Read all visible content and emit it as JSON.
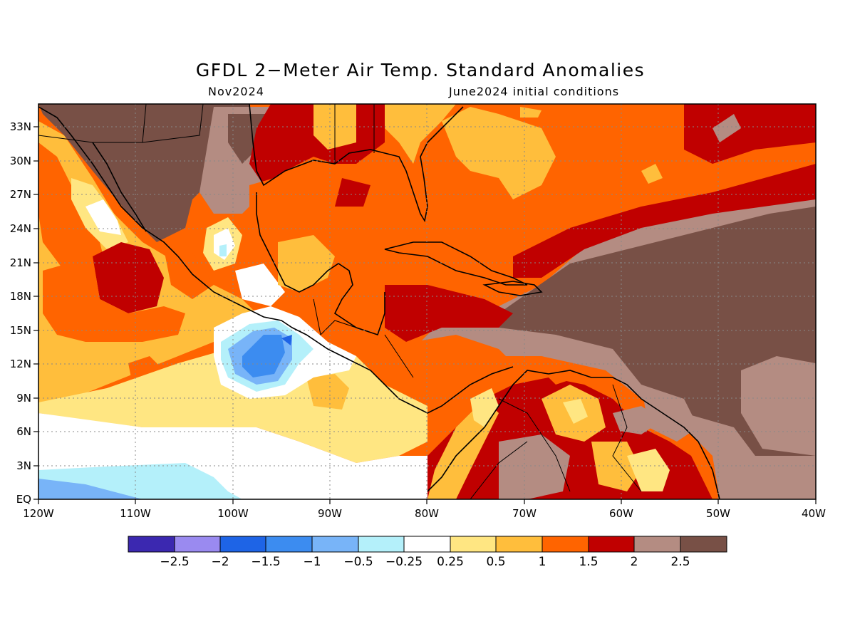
{
  "title": "GFDL 2−Meter Air Temp. Standard Anomalies",
  "subtitle_left": "Nov2024",
  "subtitle_right": "June2024 initial conditions",
  "lat_ticks": [
    "33N",
    "30N",
    "27N",
    "24N",
    "21N",
    "18N",
    "15N",
    "12N",
    "9N",
    "6N",
    "3N",
    "EQ"
  ],
  "lon_ticks": [
    "120W",
    "110W",
    "100W",
    "90W",
    "80W",
    "70W",
    "60W",
    "50W",
    "40W"
  ],
  "colorbar": {
    "colors": [
      "#3b28b0",
      "#9a8af0",
      "#1e64e6",
      "#3c8cf0",
      "#78b4f8",
      "#b4f0fa",
      "#ffffff",
      "#ffe682",
      "#ffbe3c",
      "#ff6400",
      "#c00000",
      "#b48c82",
      "#785046"
    ],
    "labels": [
      "−2.5",
      "−2",
      "−1.5",
      "−1",
      "−0.5",
      "−0.25",
      "0.25",
      "0.5",
      "1",
      "1.5",
      "2",
      "2.5"
    ]
  }
}
